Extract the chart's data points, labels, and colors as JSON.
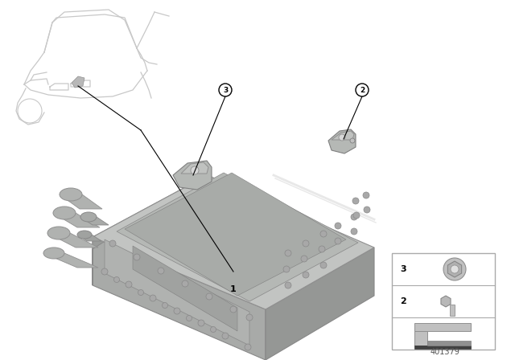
{
  "bg": "#ffffff",
  "diagram_number": "401379",
  "car_color": "#d8d8d8",
  "unit_top_color": "#b8bbb8",
  "unit_front_color": "#a5a8a5",
  "unit_right_color": "#989898",
  "unit_dark": "#888888",
  "unit_light": "#cccccc",
  "pipe_color": "#b0b0b0",
  "pipe_dark": "#909090",
  "stud_color": "#a8a8a8",
  "bracket_color": "#b5b8b5",
  "legend_border": "#aaaaaa",
  "fig_w": 6.4,
  "fig_h": 4.48,
  "dpi": 100
}
